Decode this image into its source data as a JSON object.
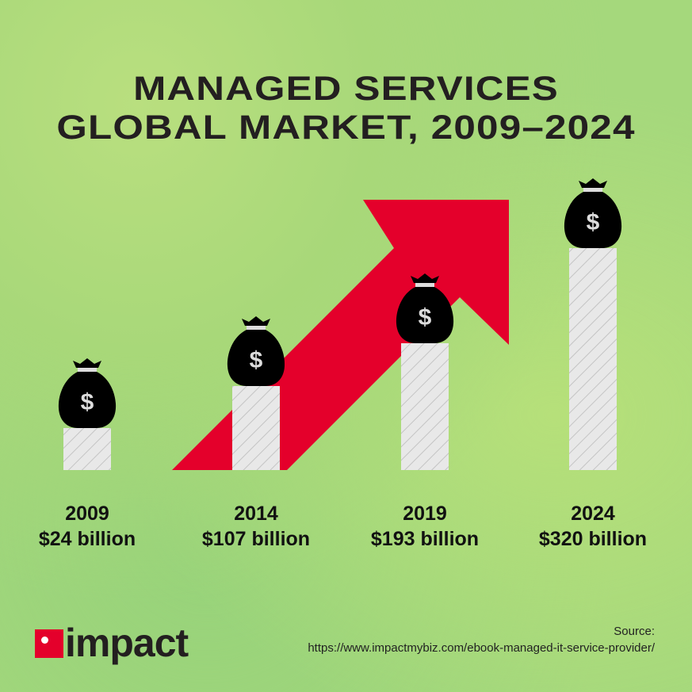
{
  "chart_data": {
    "type": "bar",
    "title": "MANAGED SERVICES GLOBAL MARKET, 2009–2024",
    "title_lines": [
      "MANAGED SERVICES",
      "GLOBAL MARKET, 2009–2024"
    ],
    "categories": [
      "2009",
      "2014",
      "2019",
      "2024"
    ],
    "values": [
      24,
      107,
      193,
      320
    ],
    "value_labels": [
      "$24 billion",
      "$107 billion",
      "$193 billion",
      "$320 billion"
    ],
    "unit": "billion USD",
    "grid": false,
    "icon": "money-bag-icon",
    "colors": {
      "arrow": "#e4002b",
      "bar": "#e6e6e6",
      "bag": "#000000"
    }
  },
  "footer": {
    "logo_text": "impact",
    "source_label": "Source:",
    "source_url": "https://www.impactmybiz.com/ebook-managed-it-service-provider/"
  }
}
